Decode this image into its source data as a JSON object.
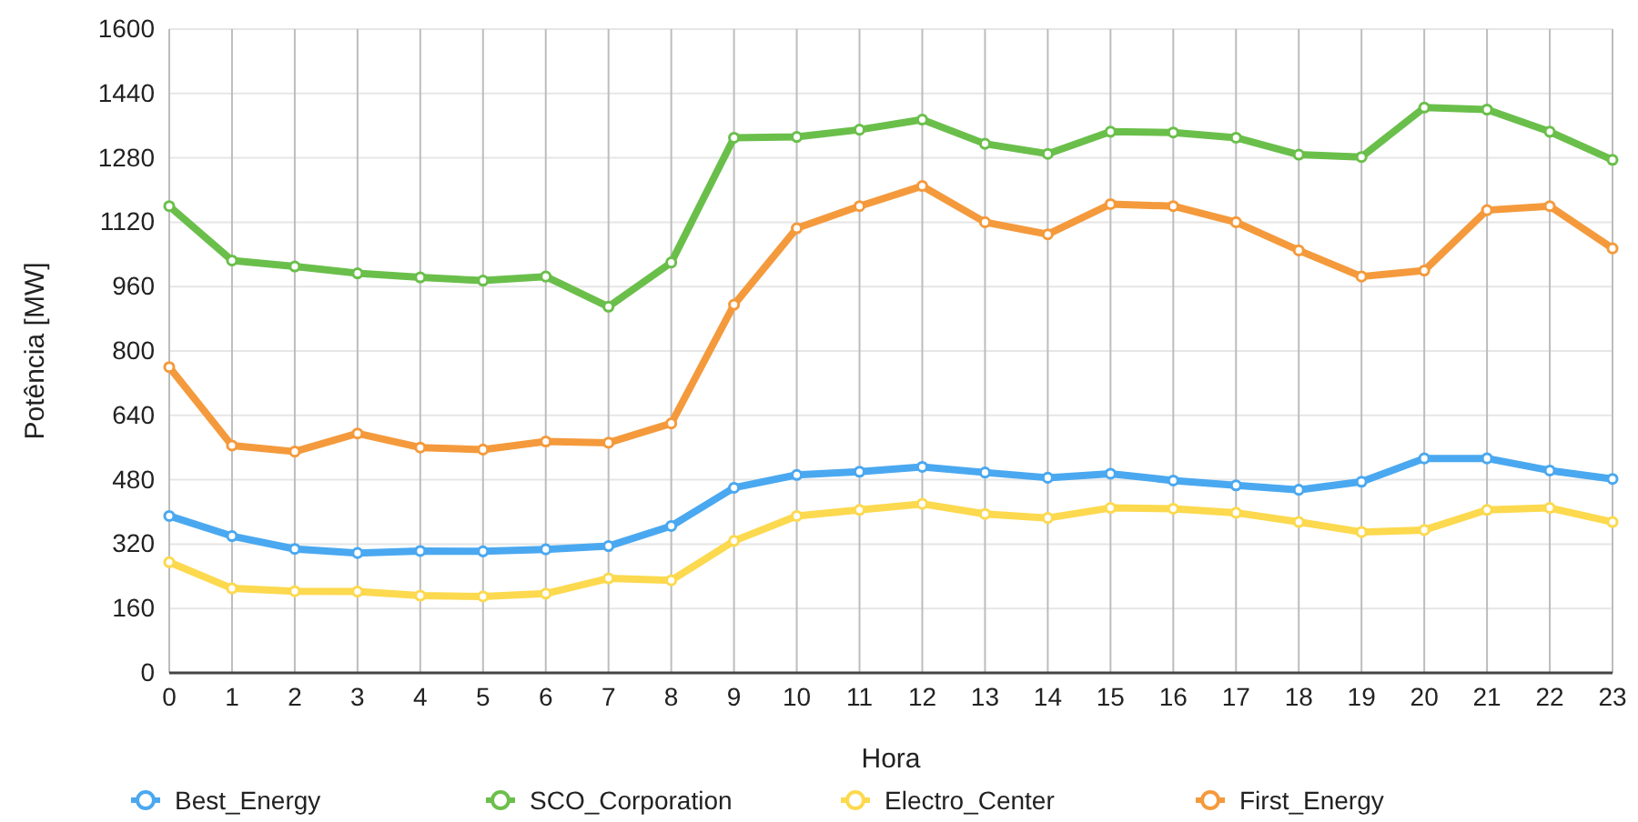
{
  "chart_data": {
    "type": "line",
    "xlabel": "Hora",
    "ylabel": "Potência [MW]",
    "x": [
      0,
      1,
      2,
      3,
      4,
      5,
      6,
      7,
      8,
      9,
      10,
      11,
      12,
      13,
      14,
      15,
      16,
      17,
      18,
      19,
      20,
      21,
      22,
      23
    ],
    "xlim": [
      0,
      23
    ],
    "xticks": [
      0,
      1,
      2,
      3,
      4,
      5,
      6,
      7,
      8,
      9,
      10,
      11,
      12,
      13,
      14,
      15,
      16,
      17,
      18,
      19,
      20,
      21,
      22,
      23
    ],
    "ylim": [
      0,
      1600
    ],
    "yticks": [
      0,
      160,
      320,
      480,
      640,
      800,
      960,
      1120,
      1280,
      1440,
      1600
    ],
    "grid": true,
    "legend": "bottom",
    "marker": "circle",
    "line_style": "solid",
    "series": [
      {
        "name": "Best_Energy",
        "color": "#4aa8f0",
        "values": [
          390,
          340,
          308,
          298,
          303,
          302,
          307,
          315,
          365,
          460,
          492,
          500,
          512,
          498,
          485,
          495,
          478,
          466,
          455,
          475,
          533,
          533,
          503,
          482
        ]
      },
      {
        "name": "SCO_Corporation",
        "color": "#6abf4b",
        "values": [
          1160,
          1025,
          1010,
          993,
          983,
          975,
          985,
          910,
          1020,
          1330,
          1332,
          1350,
          1375,
          1315,
          1290,
          1345,
          1343,
          1330,
          1288,
          1282,
          1405,
          1400,
          1345,
          1275
        ]
      },
      {
        "name": "Electro_Center",
        "color": "#fcd94e",
        "values": [
          275,
          210,
          203,
          202,
          192,
          190,
          197,
          235,
          230,
          328,
          390,
          405,
          420,
          395,
          385,
          410,
          408,
          398,
          375,
          350,
          355,
          405,
          410,
          375
        ]
      },
      {
        "name": "First_Energy",
        "color": "#f49a3c",
        "values": [
          760,
          565,
          550,
          595,
          560,
          555,
          575,
          572,
          620,
          915,
          1105,
          1160,
          1210,
          1120,
          1090,
          1165,
          1160,
          1120,
          1050,
          985,
          1000,
          1150,
          1160,
          1055
        ]
      }
    ]
  }
}
